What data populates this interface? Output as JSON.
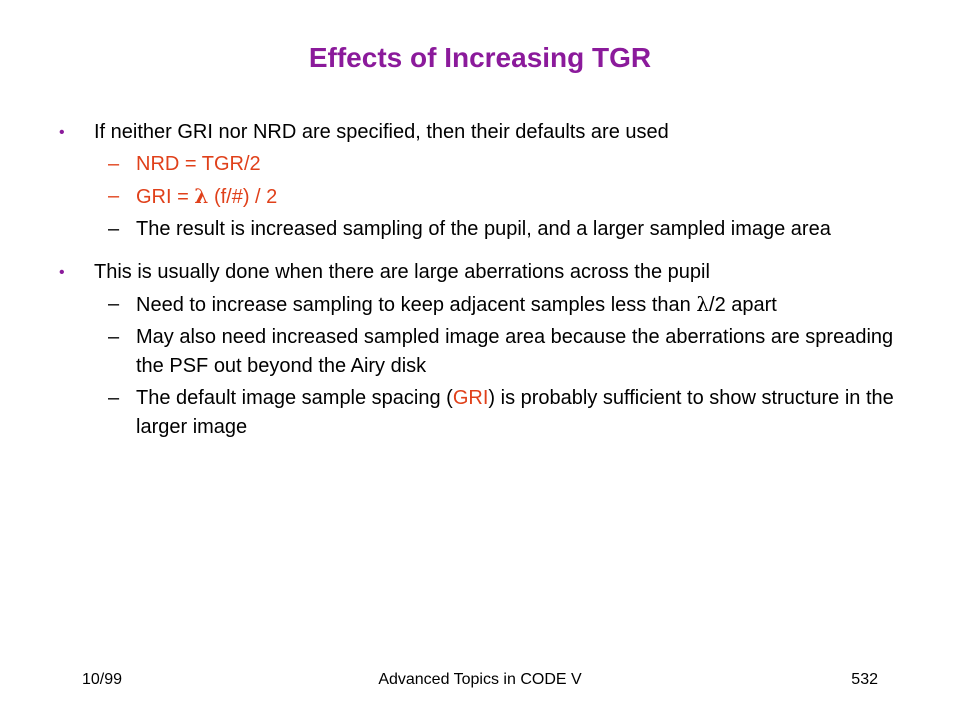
{
  "slide": {
    "title": "Effects of Increasing TGR",
    "bullets": [
      {
        "marker": "•",
        "text": "If neither GRI nor NRD are specified, then their defaults are used",
        "subs": [
          {
            "dash": "–",
            "text": "NRD = TGR/2"
          },
          {
            "dash": "–",
            "prefix": "GRI = ",
            "symbol": "λ",
            "suffix": " (f/#) / 2"
          },
          {
            "dash": "–",
            "text": "The result is increased sampling of the pupil, and a larger sampled image area"
          }
        ]
      },
      {
        "marker": "•",
        "text": "This is usually done when there are large aberrations across the pupil",
        "subs": [
          {
            "dash": "–",
            "prefix": "Need to increase sampling to keep adjacent samples less than ",
            "symbol": "λ",
            "suffix": "/2 apart"
          },
          {
            "dash": "–",
            "text": "May also need increased sampled image area because the aberrations are spreading the PSF out beyond the Airy disk"
          },
          {
            "dash": "–",
            "prefix": "The default image sample spacing (",
            "highlight": "GRI",
            "suffix": ") is probably sufficient to show structure in the larger image"
          }
        ]
      }
    ]
  },
  "footer": {
    "date": "10/99",
    "course": "Advanced Topics in CODE V",
    "page_number": "532"
  },
  "colors": {
    "title": "#8b1a9b",
    "accent": "#e0401a",
    "text": "#000000",
    "background": "#ffffff"
  }
}
